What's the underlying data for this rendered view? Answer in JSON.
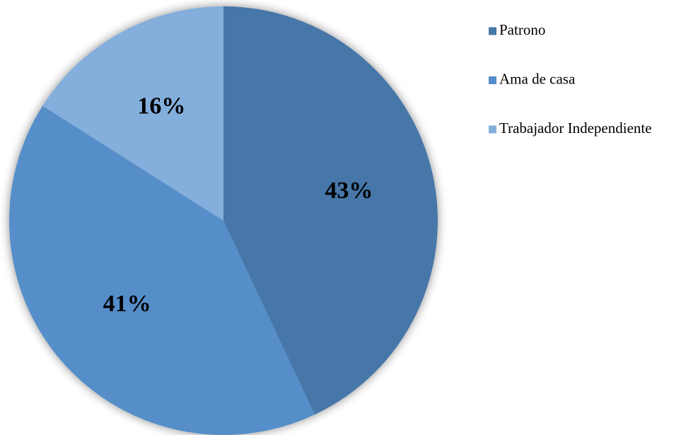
{
  "chart_data": {
    "type": "pie",
    "categories": [
      "Patrono",
      "Ama de casa",
      "Trabajador Independiente"
    ],
    "values": [
      43,
      41,
      16
    ],
    "value_labels": [
      "43%",
      "41%",
      "16%"
    ],
    "colors": [
      "#4677a8",
      "#548ec9",
      "#84aedb"
    ],
    "legend": "right"
  }
}
